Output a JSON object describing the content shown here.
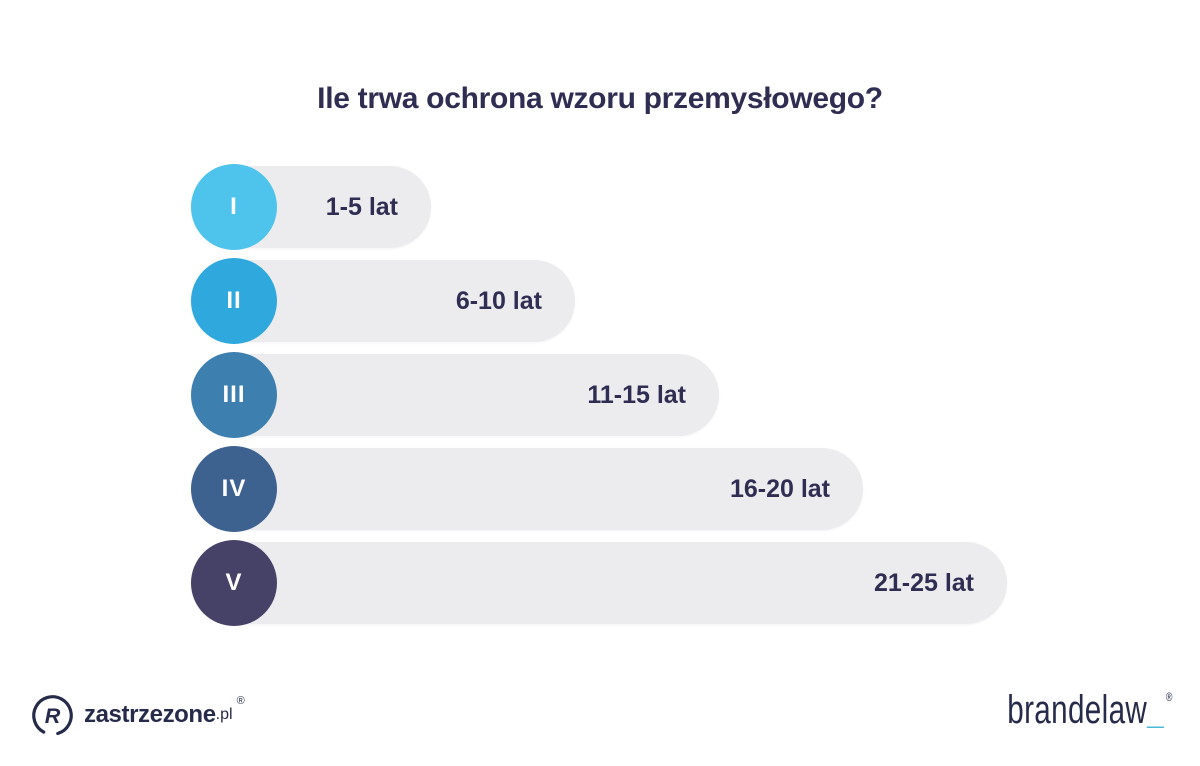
{
  "title": "Ile trwa ochrona wzoru przemysłowego?",
  "chart_data": {
    "type": "bar",
    "orientation": "horizontal",
    "title": "Ile trwa ochrona wzoru przemysłowego?",
    "categories": [
      "I",
      "II",
      "III",
      "IV",
      "V"
    ],
    "values": [
      5,
      10,
      15,
      20,
      25
    ],
    "value_unit": "lat",
    "labels": [
      "1-5 lat",
      "6-10 lat",
      "11-15 lat",
      "16-20 lat",
      "21-25 lat"
    ],
    "xlim": [
      0,
      25
    ],
    "grid": false,
    "legend": false,
    "bar_colors": [
      "#4EC3EC",
      "#2FA8DE",
      "#3D80B0",
      "#3D6290",
      "#454167"
    ],
    "track_color": "#ECECEE",
    "label_color": "#2F2E52"
  },
  "footer": {
    "left_brand": {
      "mark": "R",
      "name": "zastrzezone",
      "tld": ".pl",
      "registered": "®"
    },
    "right_brand": {
      "name": "brandelaw",
      "underscore": "_",
      "registered": "®"
    }
  },
  "colors": {
    "background": "#FFFFFF",
    "title": "#2F2E52",
    "brand_navy": "#262B49",
    "accent_cyan": "#49B8DC"
  }
}
